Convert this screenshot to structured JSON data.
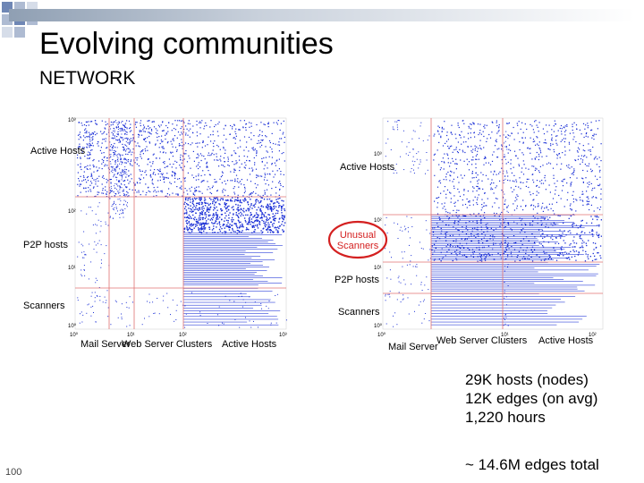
{
  "slide": {
    "title": "Evolving communities",
    "subtitle": "NETWORK",
    "page_number": "100"
  },
  "left_plot": {
    "y_labels": [
      "Active Hosts",
      "P2P hosts",
      "Scanners"
    ],
    "x_labels": [
      "Mail Server",
      "Web Server Clusters",
      "Active Hosts"
    ],
    "ticks_y": [
      "10⁰",
      "10¹",
      "10²",
      "10³"
    ],
    "ticks_x": [
      "10⁰",
      "10¹",
      "10²",
      "10³"
    ]
  },
  "right_plot": {
    "y_labels": [
      "Active Hosts",
      "P2P hosts",
      "Scanners"
    ],
    "x_labels": [
      "Mail Server",
      "Web Server Clusters",
      "Active Hosts"
    ],
    "highlight_label": "Unusual Scanners",
    "ticks_y": [
      "10⁰",
      "10¹",
      "10²",
      "10³"
    ],
    "ticks_x": [
      "10⁰",
      "10¹",
      "10²"
    ]
  },
  "stats": {
    "lines": [
      "29K hosts (nodes)",
      "12K edges (on avg)",
      "1,220 hours"
    ],
    "total": "~ 14.6M edges total"
  },
  "colors": {
    "dots": "#1a2fd6",
    "divider": "#e07070",
    "highlight": "#d42020",
    "accent_squares": "#6f87b5"
  }
}
